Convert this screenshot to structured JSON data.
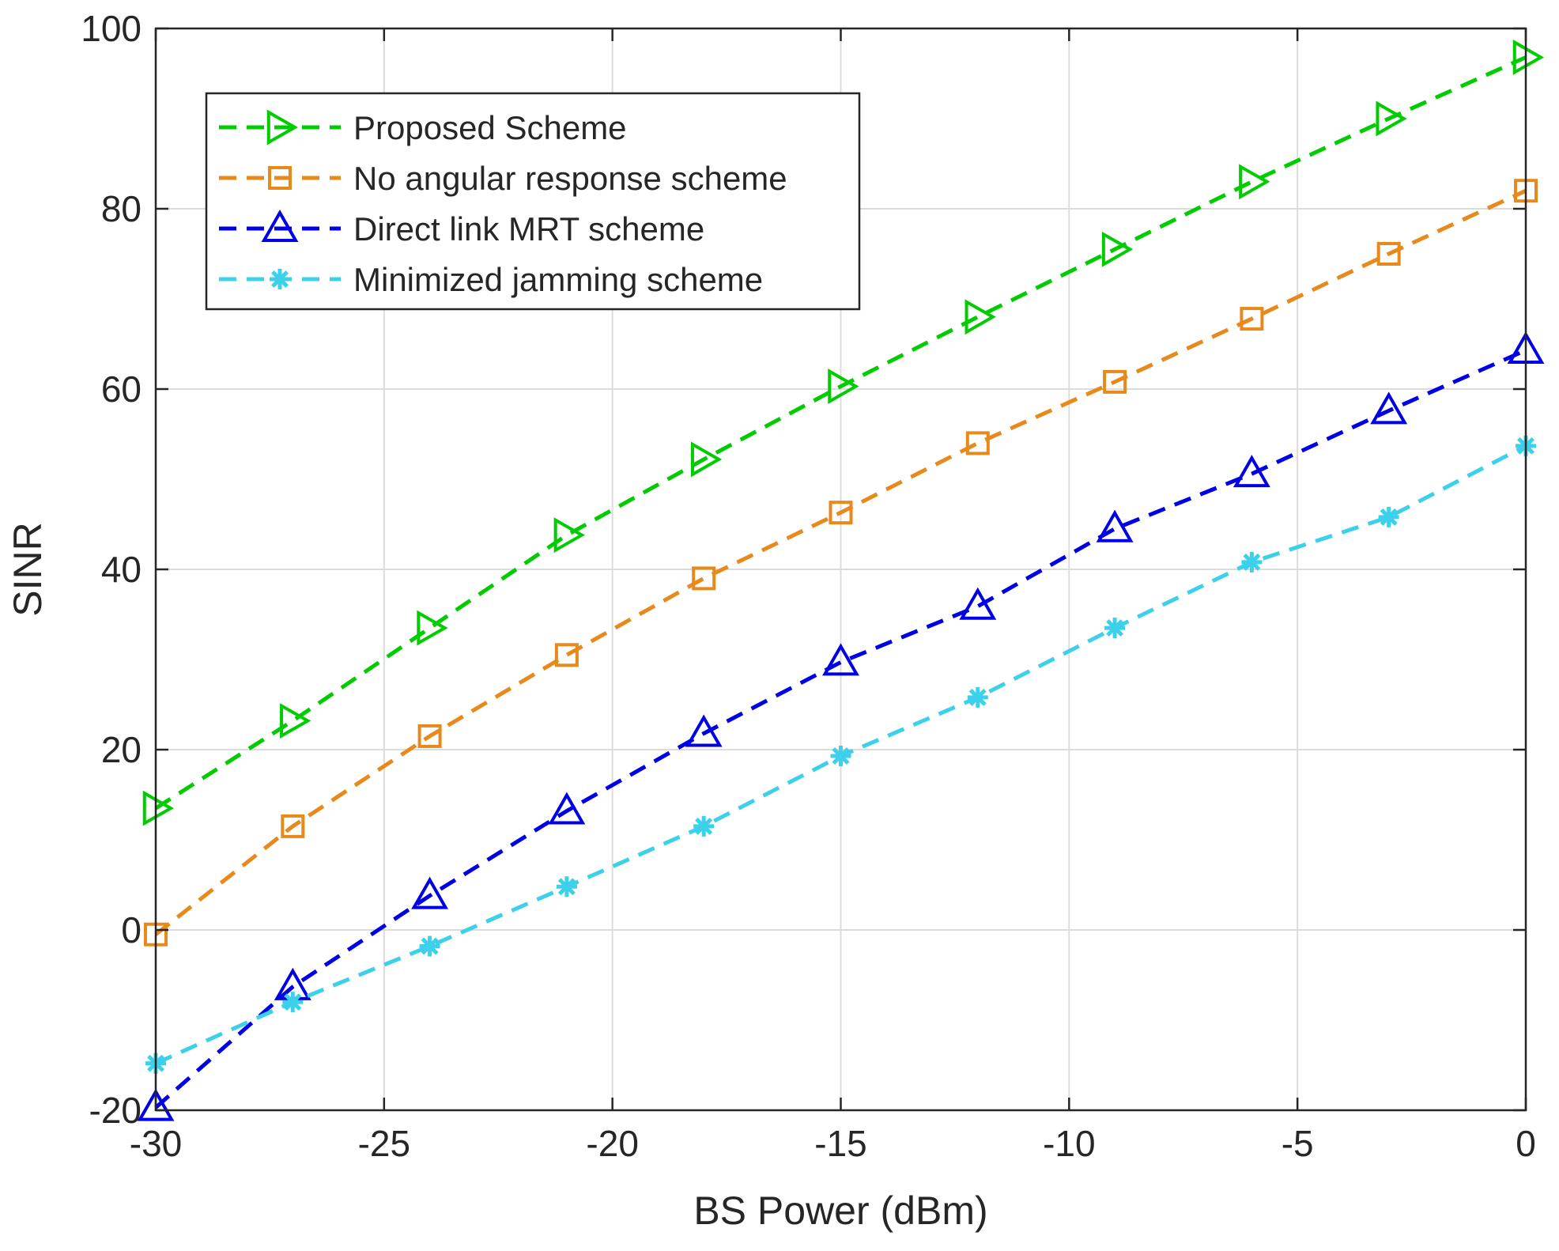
{
  "chart_data": {
    "type": "line",
    "title": "",
    "xlabel": "BS Power (dBm)",
    "ylabel": "SINR",
    "xlim": [
      -30,
      0
    ],
    "ylim": [
      -20,
      100
    ],
    "xticks": [
      -30,
      -25,
      -20,
      -15,
      -10,
      -5,
      0
    ],
    "yticks": [
      -20,
      0,
      20,
      40,
      60,
      80,
      100
    ],
    "xtick_labels": [
      "-30",
      "-25",
      "-20",
      "-15",
      "-10",
      "-5",
      "0"
    ],
    "ytick_labels": [
      "-20",
      "0",
      "20",
      "40",
      "60",
      "80",
      "100"
    ],
    "grid": true,
    "legend_position": "top-left",
    "x": [
      -30,
      -27,
      -24,
      -21,
      -18,
      -15,
      -12,
      -9,
      -6,
      -3,
      0
    ],
    "series": [
      {
        "name": "Proposed Scheme",
        "color": "#00cc00",
        "marker": "triangle-right",
        "values": [
          13.5,
          23.2,
          33.5,
          43.8,
          52.2,
          60.3,
          68.0,
          75.5,
          83.0,
          90.0,
          96.8
        ]
      },
      {
        "name": "No angular response scheme",
        "color": "#e8891c",
        "marker": "square",
        "values": [
          -0.5,
          11.5,
          21.5,
          30.5,
          39.0,
          46.3,
          54.0,
          60.8,
          67.8,
          75.0,
          82.0
        ]
      },
      {
        "name": "Direct link MRT scheme",
        "color": "#0000e6",
        "marker": "triangle-up",
        "values": [
          -19.7,
          -6.3,
          3.8,
          13.2,
          21.8,
          29.7,
          35.9,
          44.5,
          50.6,
          57.6,
          64.3
        ]
      },
      {
        "name": "Minimized jamming scheme",
        "color": "#3cd0ea",
        "marker": "asterisk",
        "values": [
          -14.8,
          -8.0,
          -1.8,
          4.8,
          11.5,
          19.3,
          25.8,
          33.5,
          40.8,
          45.8,
          53.7
        ]
      }
    ]
  }
}
